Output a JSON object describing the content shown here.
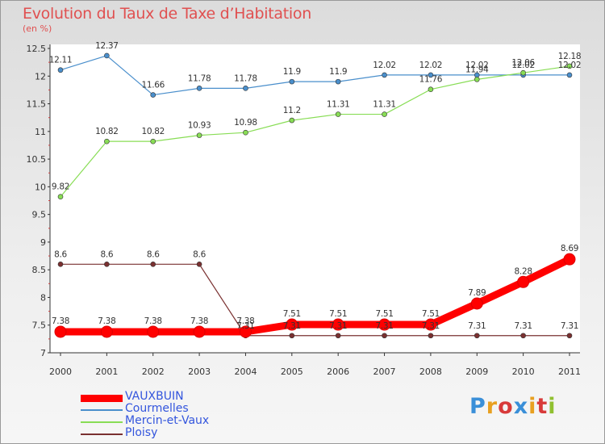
{
  "title": "Evolution du Taux de Taxe d’Habitation",
  "subtitle": "(en %)",
  "logo": "Proxiti",
  "chart_data": {
    "type": "line",
    "title": "Evolution du Taux de Taxe d’Habitation",
    "subtitle": "(en %)",
    "xlabel": "",
    "ylabel": "",
    "x": [
      "2000",
      "2001",
      "2002",
      "2003",
      "2004",
      "2005",
      "2006",
      "2007",
      "2008",
      "2009",
      "2010",
      "2011"
    ],
    "ylim": [
      7,
      12.5
    ],
    "yticks": [
      "7",
      "7.5",
      "8",
      "8.5",
      "9",
      "9.5",
      "10",
      "10.5",
      "11",
      "11.5",
      "12",
      "12.5"
    ],
    "legend_position": "bottom-left",
    "grid": false,
    "series": [
      {
        "name": "VAUXBUIN",
        "color": "#ff0000",
        "values": [
          7.38,
          7.38,
          7.38,
          7.38,
          7.38,
          7.51,
          7.51,
          7.51,
          7.51,
          7.89,
          8.28,
          8.69
        ],
        "labels": [
          "7.38",
          "7.38",
          "7.38",
          "7.38",
          "7.38",
          "7.51",
          "7.51",
          "7.51",
          "7.51",
          "7.89",
          "8.28",
          "8.69"
        ]
      },
      {
        "name": "Courmelles",
        "color": "#4a8fcc",
        "values": [
          12.11,
          12.37,
          11.66,
          11.78,
          11.78,
          11.9,
          11.9,
          12.02,
          12.02,
          12.02,
          12.02,
          12.02
        ],
        "labels": [
          "12.11",
          "12.37",
          "11.66",
          "11.78",
          "11.78",
          "11.9",
          "11.9",
          "12.02",
          "12.02",
          "12.02",
          "12.02",
          "12.02"
        ]
      },
      {
        "name": "Mercin-et-Vaux",
        "color": "#88dd55",
        "values": [
          9.82,
          10.82,
          10.82,
          10.93,
          10.98,
          11.2,
          11.31,
          11.31,
          11.76,
          11.94,
          12.06,
          12.18
        ],
        "labels": [
          "9.82",
          "10.82",
          "10.82",
          "10.93",
          "10.98",
          "11.2",
          "11.31",
          "11.31",
          "11.76",
          "11.94",
          "12.06",
          "12.18"
        ]
      },
      {
        "name": "Ploisy",
        "color": "#7a3030",
        "values": [
          8.6,
          8.6,
          8.6,
          8.6,
          7.31,
          7.31,
          7.31,
          7.31,
          7.31,
          7.31,
          7.31,
          7.31
        ],
        "labels": [
          "8.6",
          "8.6",
          "8.6",
          "8.6",
          "7.31",
          "7.31",
          "7.31",
          "7.31",
          "7.31",
          "7.31",
          "7.31",
          "7.31"
        ]
      }
    ]
  }
}
